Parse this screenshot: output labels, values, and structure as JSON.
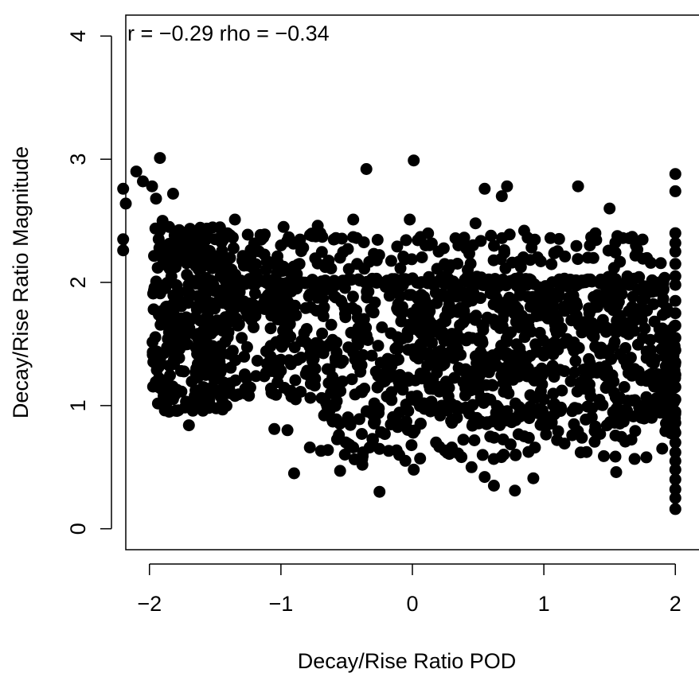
{
  "chart_data": {
    "type": "scatter",
    "title": "",
    "annotation": "r = −0.29 rho = −0.34",
    "xlabel": "Decay/Rise Ratio POD",
    "ylabel": "Decay/Rise Ratio Magnitude",
    "xlim": [
      -2.18,
      2.18
    ],
    "ylim": [
      -0.17,
      4.17
    ],
    "x_ticks": [
      -2,
      -1,
      0,
      1,
      2
    ],
    "x_tick_labels": [
      "−2",
      "−1",
      "0",
      "1",
      "2"
    ],
    "y_ticks": [
      0,
      1,
      2,
      3,
      4
    ],
    "y_tick_labels": [
      "0",
      "1",
      "2",
      "3",
      "4"
    ],
    "grid": false,
    "legend": "none",
    "marker_color": "#000000",
    "series": [
      {
        "points": [
          [
            -1.92,
            3.01
          ],
          [
            -2.1,
            2.9
          ],
          [
            -2.2,
            2.76
          ],
          [
            -2.18,
            2.64
          ],
          [
            -2.05,
            2.82
          ],
          [
            -1.98,
            2.78
          ],
          [
            -1.95,
            2.68
          ],
          [
            -1.82,
            2.72
          ],
          [
            -2.2,
            2.35
          ],
          [
            -2.2,
            2.26
          ],
          [
            -1.9,
            2.5
          ],
          [
            -1.85,
            2.45
          ],
          [
            0.01,
            2.99
          ],
          [
            -0.35,
            2.92
          ],
          [
            1.26,
            2.78
          ],
          [
            0.72,
            2.78
          ],
          [
            0.55,
            2.76
          ],
          [
            0.68,
            2.7
          ],
          [
            1.5,
            2.6
          ],
          [
            2.0,
            2.88
          ],
          [
            2.0,
            2.74
          ],
          [
            0.48,
            2.48
          ],
          [
            -0.02,
            2.51
          ],
          [
            -0.45,
            2.51
          ],
          [
            -0.72,
            2.46
          ],
          [
            -0.98,
            2.45
          ],
          [
            -1.35,
            2.51
          ],
          [
            0.85,
            2.42
          ],
          [
            1.05,
            2.36
          ],
          [
            1.6,
            2.36
          ],
          [
            -0.7,
            2.4
          ],
          [
            -0.55,
            2.2
          ],
          [
            -0.42,
            2.15
          ],
          [
            0.1,
            2.3
          ],
          [
            0.2,
            2.25
          ],
          [
            0.35,
            2.3
          ],
          [
            -1.0,
            2.3
          ],
          [
            -1.2,
            2.28
          ],
          [
            -1.5,
            2.35
          ],
          [
            -1.6,
            2.25
          ],
          [
            1.35,
            2.3
          ],
          [
            1.7,
            2.3
          ],
          [
            -0.95,
            0.8
          ],
          [
            -1.05,
            0.81
          ],
          [
            -0.9,
            0.45
          ],
          [
            -0.38,
            0.52
          ],
          [
            -0.25,
            0.3
          ],
          [
            0.01,
            0.48
          ],
          [
            0.62,
            0.35
          ],
          [
            0.78,
            0.31
          ],
          [
            0.92,
            0.41
          ],
          [
            1.55,
            0.46
          ],
          [
            0.45,
            0.5
          ],
          [
            0.55,
            0.42
          ],
          [
            -0.1,
            0.6
          ],
          [
            0.3,
            0.66
          ],
          [
            -0.55,
            0.47
          ],
          [
            -0.78,
            0.66
          ],
          [
            -1.7,
            0.84
          ],
          [
            -1.85,
            0.95
          ],
          [
            1.78,
            0.58
          ],
          [
            1.9,
            0.65
          ],
          [
            1.28,
            0.62
          ],
          [
            1.1,
            0.72
          ],
          [
            0.85,
            0.75
          ],
          [
            0.18,
            0.7
          ],
          [
            -0.45,
            0.66
          ],
          [
            -0.3,
            0.72
          ],
          [
            2.0,
            0.16
          ],
          [
            2.0,
            0.25
          ],
          [
            2.0,
            0.32
          ],
          [
            2.0,
            0.4
          ],
          [
            2.0,
            0.48
          ],
          [
            2.0,
            0.55
          ],
          [
            2.0,
            0.62
          ],
          [
            2.0,
            0.7
          ],
          [
            2.0,
            0.78
          ],
          [
            2.0,
            0.86
          ],
          [
            2.0,
            0.95
          ],
          [
            2.0,
            1.05
          ],
          [
            2.0,
            1.15
          ],
          [
            2.0,
            1.25
          ],
          [
            2.0,
            1.35
          ],
          [
            2.0,
            1.45
          ],
          [
            2.0,
            1.55
          ],
          [
            2.0,
            1.65
          ],
          [
            2.0,
            1.75
          ],
          [
            2.0,
            1.85
          ],
          [
            2.0,
            1.98
          ],
          [
            2.0,
            2.05
          ],
          [
            2.0,
            2.15
          ],
          [
            2.0,
            2.25
          ],
          [
            2.0,
            2.32
          ],
          [
            2.0,
            2.4
          ]
        ]
      }
    ],
    "dense_regions": [
      {
        "x_range": [
          -1.98,
          -1.4
        ],
        "y_range": [
          0.95,
          2.45
        ],
        "count": 330
      },
      {
        "x_range": [
          -1.4,
          -0.7
        ],
        "y_range": [
          1.05,
          2.2
        ],
        "count": 170
      },
      {
        "x_range": [
          -0.7,
          -0.05
        ],
        "y_range": [
          0.85,
          2.05
        ],
        "count": 150
      },
      {
        "x_range": [
          -0.05,
          1.0
        ],
        "y_range": [
          0.85,
          2.05
        ],
        "count": 390
      },
      {
        "x_range": [
          1.0,
          1.95
        ],
        "y_range": [
          0.85,
          2.05
        ],
        "count": 300
      },
      {
        "x_range": [
          -0.75,
          1.65
        ],
        "y_range": [
          1.97,
          2.03
        ],
        "count": 120
      },
      {
        "x_range": [
          -1.4,
          -0.8
        ],
        "y_range": [
          1.98,
          2.02
        ],
        "count": 35
      },
      {
        "x_range": [
          -1.8,
          -0.9
        ],
        "y_range": [
          1.8,
          1.85
        ],
        "count": 30
      },
      {
        "x_range": [
          -1.85,
          1.9
        ],
        "y_range": [
          2.1,
          2.4
        ],
        "count": 150
      },
      {
        "x_range": [
          -0.7,
          1.7
        ],
        "y_range": [
          0.55,
          0.85
        ],
        "count": 80
      },
      {
        "x_range": [
          1.92,
          2.0
        ],
        "y_range": [
          0.75,
          1.65
        ],
        "count": 50
      }
    ]
  }
}
